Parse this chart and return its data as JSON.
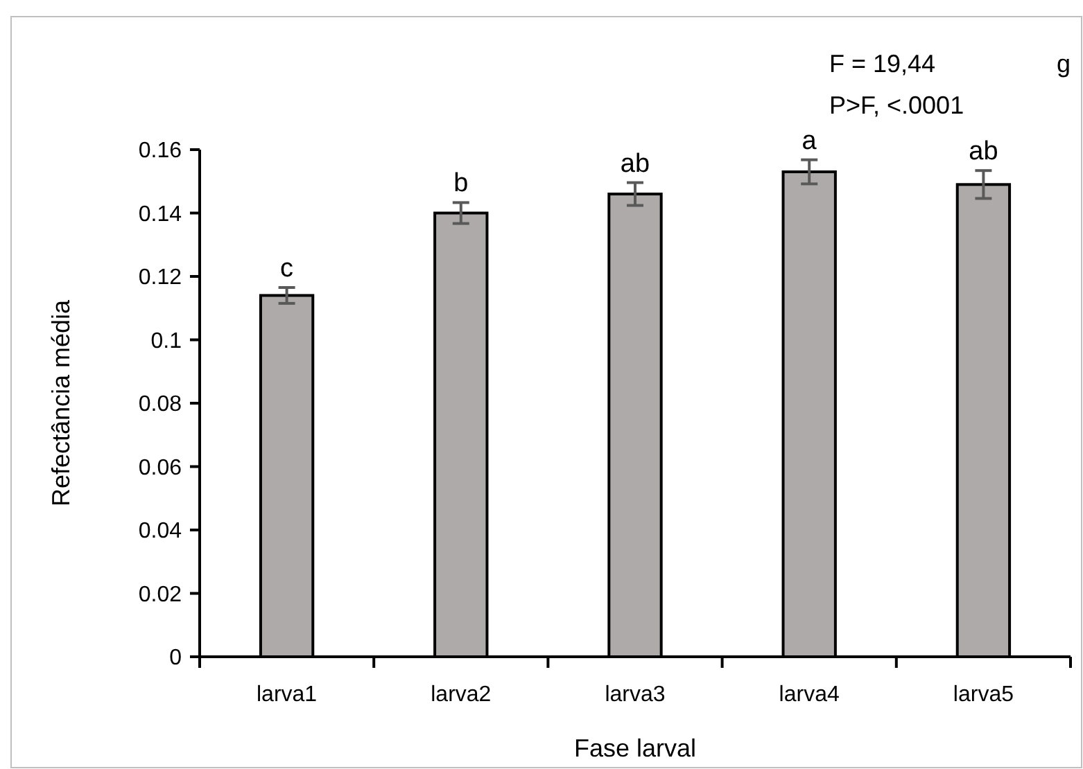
{
  "chart_data": {
    "type": "bar",
    "xlabel": "Fase larval",
    "ylabel": "Refectância média",
    "categories": [
      "larva1",
      "larva2",
      "larva3",
      "larva4",
      "larva5"
    ],
    "values": [
      0.114,
      0.14,
      0.146,
      0.153,
      0.149
    ],
    "errors": [
      0.0025,
      0.0033,
      0.0036,
      0.0038,
      0.0044
    ],
    "color": "#aeaaaa",
    "ylim": [
      0,
      0.16
    ],
    "yticks": [
      0,
      0.02,
      0.04,
      0.06,
      0.08,
      0.1,
      0.12,
      0.14,
      0.16
    ],
    "grid": false,
    "annotations": [
      {
        "text": "c",
        "x": "larva1",
        "y": 0.1165
      },
      {
        "text": "b",
        "x": "larva2",
        "y": 0.1433
      },
      {
        "text": "ab",
        "x": "larva3",
        "y": 0.1496
      },
      {
        "text": "a",
        "x": "larva4",
        "y": 0.1568
      },
      {
        "text": "ab",
        "x": "larva5",
        "y": 0.1534
      },
      "F = 19,44",
      "P>F, <.0001",
      "g"
    ]
  }
}
